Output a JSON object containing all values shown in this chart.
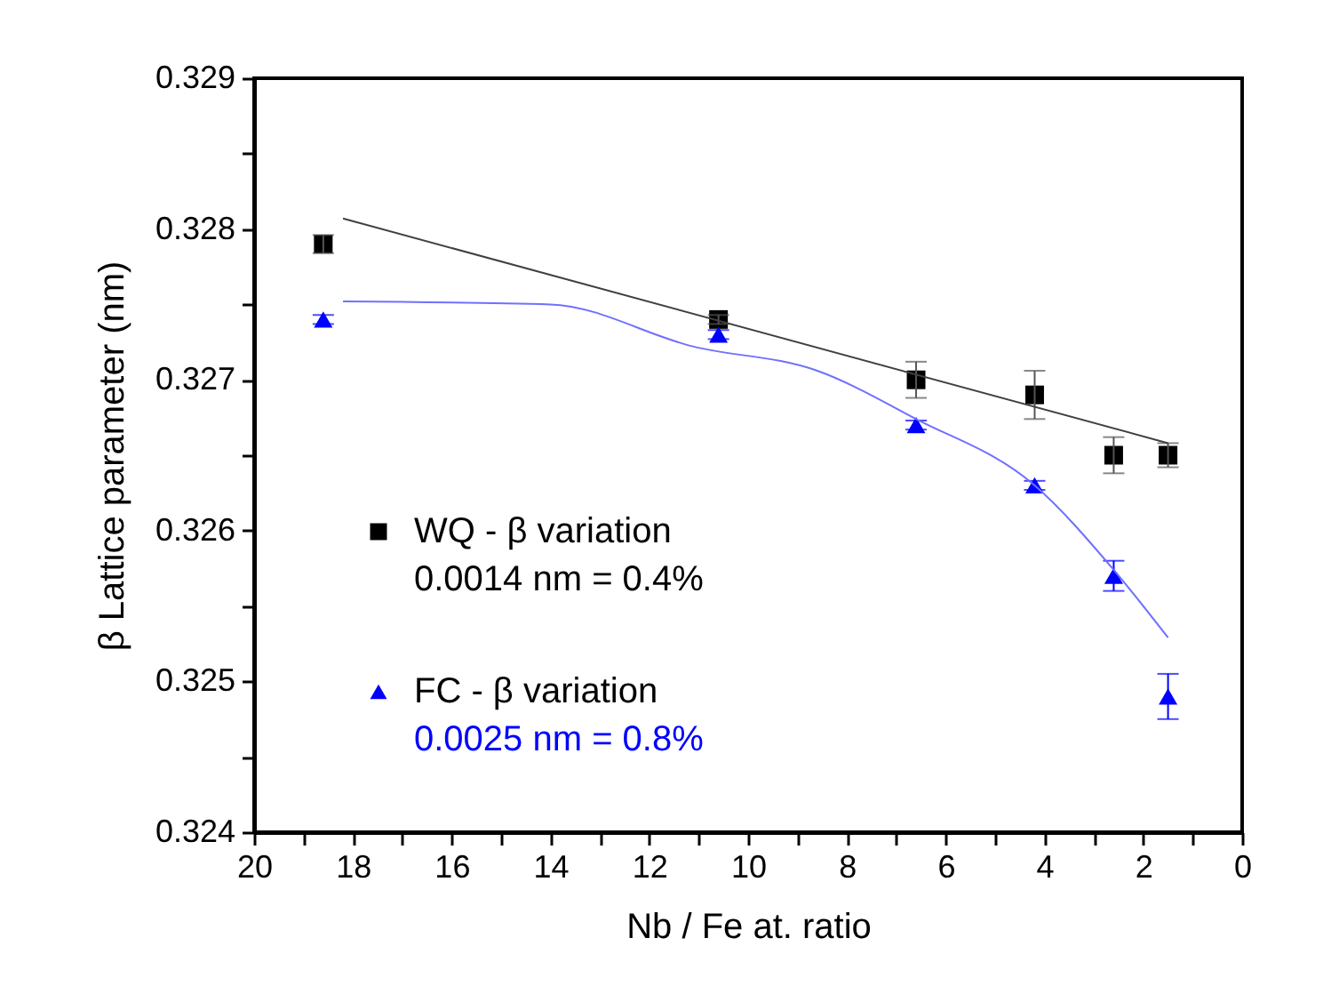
{
  "chart_data": {
    "type": "scatter",
    "xlabel": "Nb / Fe at. ratio",
    "ylabel": "β Lattice parameter (nm)",
    "xlim": [
      20,
      0
    ],
    "ylim": [
      0.324,
      0.329
    ],
    "xticks": [
      20,
      {
        "value": 19,
        "label": null
      },
      18,
      {
        "value": 17,
        "label": null
      },
      16,
      {
        "value": 15,
        "label": null
      },
      14,
      {
        "value": 13,
        "label": null
      },
      12,
      {
        "value": 11,
        "label": null
      },
      10,
      {
        "value": 9,
        "label": null
      },
      8,
      {
        "value": 7,
        "label": null
      },
      6,
      {
        "value": 5,
        "label": null
      },
      4,
      {
        "value": 3,
        "label": null
      },
      2,
      {
        "value": 1,
        "label": null
      },
      0
    ],
    "yticks": [
      0.324,
      {
        "value": 0.3245,
        "label": null
      },
      0.325,
      {
        "value": 0.3255,
        "label": null
      },
      0.326,
      {
        "value": 0.3265,
        "label": null
      },
      0.327,
      {
        "value": 0.3275,
        "label": null
      },
      0.328,
      {
        "value": 0.3285,
        "label": null
      },
      0.329
    ],
    "grid": false,
    "legend": "left",
    "series": [
      {
        "name": "WQ - β variation",
        "type": "scatter",
        "marker": "square",
        "color": "#000000",
        "x": [
          18.6,
          10.6,
          6.6,
          4.2,
          2.6,
          1.5
        ],
        "values": [
          0.3279,
          0.3274,
          0.327,
          0.3269,
          0.3265,
          0.3265
        ],
        "errors": [
          6e-05,
          3e-05,
          0.00012,
          0.00016,
          0.00012,
          8e-05
        ]
      },
      {
        "name": "FC - β variation",
        "type": "scatter",
        "marker": "triangle",
        "color": "#0000ff",
        "x": [
          18.6,
          10.6,
          6.6,
          4.2,
          2.6,
          1.5
        ],
        "values": [
          0.3274,
          0.3273,
          0.3267,
          0.3263,
          0.3257,
          0.3249
        ],
        "errors": [
          3e-05,
          3e-05,
          3e-05,
          3e-05,
          0.0001,
          0.00015
        ]
      },
      {
        "type": "line",
        "color": "#404040",
        "line_style": "solid",
        "x": [
          18.2,
          1.5
        ],
        "values": [
          0.32807,
          0.32658
        ]
      },
      {
        "type": "line",
        "color": "#7070ff",
        "line_style": "solid",
        "x": [
          18.2,
          14.0,
          11.1,
          8.6,
          6.6,
          4.2,
          2.6,
          1.5
        ],
        "values": [
          0.32752,
          0.3275,
          0.32722,
          0.32706,
          0.32674,
          0.3263,
          0.32574,
          0.32529
        ]
      }
    ],
    "annotations": [
      "0.0014 nm = 0.4%",
      "0.0025 nm = 0.8%"
    ]
  }
}
